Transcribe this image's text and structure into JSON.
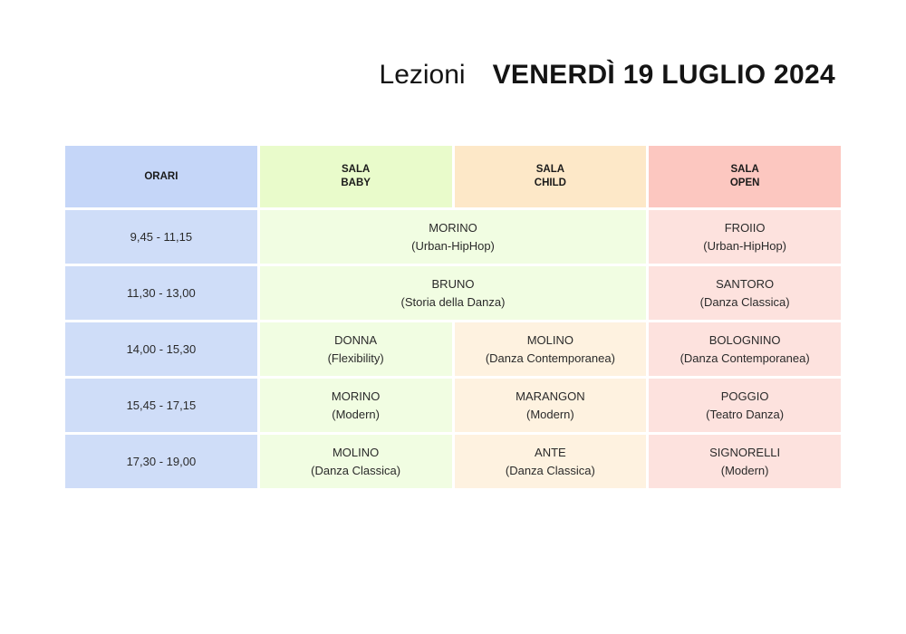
{
  "title": {
    "prefix": "Lezioni",
    "date": "VENERDÌ 19 LUGLIO 2024"
  },
  "headers": {
    "orari": "ORARI",
    "baby": [
      "SALA",
      "BABY"
    ],
    "child": [
      "SALA",
      "CHILD"
    ],
    "open": [
      "SALA",
      "OPEN"
    ]
  },
  "rows": [
    {
      "time": "9,45 - 11,15",
      "baby_child": {
        "name": "MORINO",
        "style": "(Urban-HipHop)"
      },
      "open": {
        "name": "FROIIO",
        "style": "(Urban-HipHop)"
      }
    },
    {
      "time": "11,30 - 13,00",
      "baby_child": {
        "name": "BRUNO",
        "style": "(Storia della Danza)"
      },
      "open": {
        "name": "SANTORO",
        "style": "(Danza Classica)"
      }
    },
    {
      "time": "14,00 - 15,30",
      "baby": {
        "name": "DONNA",
        "style": "(Flexibility)"
      },
      "child": {
        "name": "MOLINO",
        "style": "(Danza Contemporanea)"
      },
      "open": {
        "name": "BOLOGNINO",
        "style": "(Danza Contemporanea)"
      }
    },
    {
      "time": "15,45 - 17,15",
      "baby": {
        "name": "MORINO",
        "style": "(Modern)"
      },
      "child": {
        "name": "MARANGON",
        "style": "(Modern)"
      },
      "open": {
        "name": "POGGIO",
        "style": "(Teatro Danza)"
      }
    },
    {
      "time": "17,30 - 19,00",
      "baby": {
        "name": "MOLINO",
        "style": "(Danza Classica)"
      },
      "child": {
        "name": "ANTE",
        "style": "(Danza Classica)"
      },
      "open": {
        "name": "SIGNORELLI",
        "style": "(Modern)"
      }
    }
  ],
  "colors": {
    "orari": "#cfddf8",
    "baby": "#f1fde2",
    "child": "#fef2e0",
    "open": "#fde2de"
  }
}
